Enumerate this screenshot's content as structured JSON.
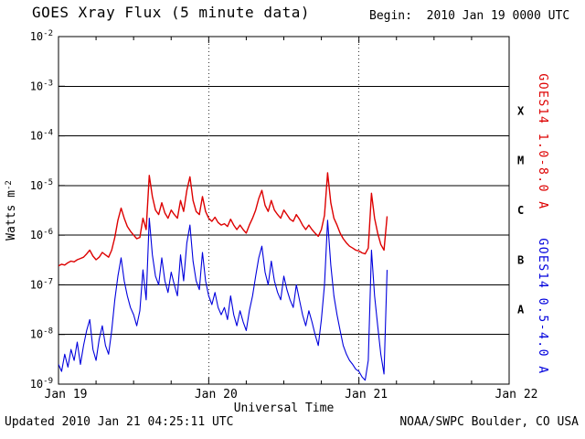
{
  "header": {
    "title": "GOES Xray Flux (5 minute data)",
    "begin_label": "Begin:  2010 Jan 19 0000 UTC"
  },
  "footer": {
    "updated": "Updated 2010 Jan 21 04:25:11 UTC",
    "credit": "NOAA/SWPC Boulder, CO USA"
  },
  "colors": {
    "long_channel": "#dd0000",
    "short_channel": "#0000dd",
    "axis": "#000000"
  },
  "chart_data": {
    "type": "line",
    "title": "GOES Xray Flux (5 minute data)",
    "xlabel": "Universal Time",
    "ylabel_base": "Watts m",
    "ylabel_sup": "-2",
    "x_tick_labels": [
      "Jan 19",
      "Jan 20",
      "Jan 21",
      "Jan 22"
    ],
    "x_tick_hours": [
      0,
      24,
      48,
      72
    ],
    "x_minor_tick_hours": 6,
    "x_range_hours": 72,
    "y_ticks_exponents": [
      -2,
      -3,
      -4,
      -5,
      -6,
      -7,
      -8,
      -9
    ],
    "ylim": [
      1e-09,
      0.01
    ],
    "grid_vertical_dotted_hours": [
      24,
      48
    ],
    "flare_class_labels": [
      "X",
      "M",
      "C",
      "B",
      "A"
    ],
    "legend_position": "right-rotated",
    "grid": "horizontal-decades",
    "series": [
      {
        "name": "GOES14 1.0-8.0 A",
        "color": "#dd0000",
        "x_start_hours": 0,
        "x_step_hours": 0.5,
        "values": [
          2.4e-07,
          2.6e-07,
          2.5e-07,
          2.8e-07,
          3e-07,
          2.9e-07,
          3.2e-07,
          3.4e-07,
          3.6e-07,
          4.2e-07,
          5e-07,
          3.8e-07,
          3.2e-07,
          3.6e-07,
          4.5e-07,
          4e-07,
          3.6e-07,
          5e-07,
          9e-07,
          2e-06,
          3.5e-06,
          2.2e-06,
          1.5e-06,
          1.2e-06,
          1e-06,
          8.5e-07,
          9e-07,
          2.2e-06,
          1.3e-06,
          1.6e-05,
          6e-06,
          3.2e-06,
          2.6e-06,
          4.5e-06,
          2.8e-06,
          2.2e-06,
          3.2e-06,
          2.6e-06,
          2.2e-06,
          5e-06,
          3e-06,
          8e-06,
          1.5e-05,
          5e-06,
          3e-06,
          2.6e-06,
          6e-06,
          3e-06,
          2.2e-06,
          1.9e-06,
          2.3e-06,
          1.8e-06,
          1.6e-06,
          1.7e-06,
          1.5e-06,
          2.1e-06,
          1.6e-06,
          1.3e-06,
          1.6e-06,
          1.3e-06,
          1.1e-06,
          1.6e-06,
          2.2e-06,
          3.2e-06,
          5.5e-06,
          8e-06,
          4e-06,
          3e-06,
          5e-06,
          3.2e-06,
          2.6e-06,
          2.2e-06,
          3.2e-06,
          2.6e-06,
          2.1e-06,
          1.9e-06,
          2.6e-06,
          2.1e-06,
          1.6e-06,
          1.3e-06,
          1.6e-06,
          1.3e-06,
          1.1e-06,
          9.5e-07,
          1.3e-06,
          2.5e-06,
          1.8e-05,
          4.5e-06,
          2.2e-06,
          1.6e-06,
          1.1e-06,
          8.5e-07,
          7e-07,
          6e-07,
          5.5e-07,
          5e-07,
          4.8e-07,
          4.4e-07,
          4.2e-07,
          5.5e-07,
          7e-06,
          2.2e-06,
          1.1e-06,
          6.5e-07,
          5e-07,
          2.4e-06
        ]
      },
      {
        "name": "GOES14 0.5-4.0 A",
        "color": "#0000dd",
        "x_start_hours": 0,
        "x_step_hours": 0.5,
        "values": [
          2.5e-09,
          1.8e-09,
          4e-09,
          2.2e-09,
          5e-09,
          3e-09,
          7e-09,
          2.5e-09,
          6e-09,
          1.2e-08,
          2e-08,
          5e-09,
          3e-09,
          8e-09,
          1.5e-08,
          6e-09,
          4e-09,
          1.2e-08,
          5e-08,
          1.5e-07,
          3.5e-07,
          1.2e-07,
          6e-08,
          3.5e-08,
          2.5e-08,
          1.5e-08,
          3e-08,
          2e-07,
          5e-08,
          2.2e-06,
          4e-07,
          1.5e-07,
          1e-07,
          3.5e-07,
          1.2e-07,
          7e-08,
          1.8e-07,
          1e-07,
          6e-08,
          4e-07,
          1.2e-07,
          7e-07,
          1.6e-06,
          3e-07,
          1.2e-07,
          8e-08,
          4.5e-07,
          1.2e-07,
          6e-08,
          4e-08,
          7e-08,
          3.5e-08,
          2.5e-08,
          3.5e-08,
          2e-08,
          6e-08,
          2.5e-08,
          1.5e-08,
          3e-08,
          1.8e-08,
          1.2e-08,
          3e-08,
          6e-08,
          1.5e-07,
          3.5e-07,
          6e-07,
          1.8e-07,
          1e-07,
          3e-07,
          1.2e-07,
          7e-08,
          5e-08,
          1.5e-07,
          8e-08,
          5e-08,
          3.5e-08,
          1e-07,
          5e-08,
          2.5e-08,
          1.5e-08,
          3e-08,
          1.8e-08,
          1e-08,
          6e-09,
          2e-08,
          1e-07,
          2e-06,
          2.5e-07,
          6e-08,
          2.5e-08,
          1.2e-08,
          6e-09,
          4e-09,
          3e-09,
          2.5e-09,
          2e-09,
          1.8e-09,
          1.4e-09,
          1.2e-09,
          3e-09,
          5e-07,
          6e-08,
          1.5e-08,
          4e-09,
          1.6e-09,
          2e-07
        ]
      }
    ]
  }
}
